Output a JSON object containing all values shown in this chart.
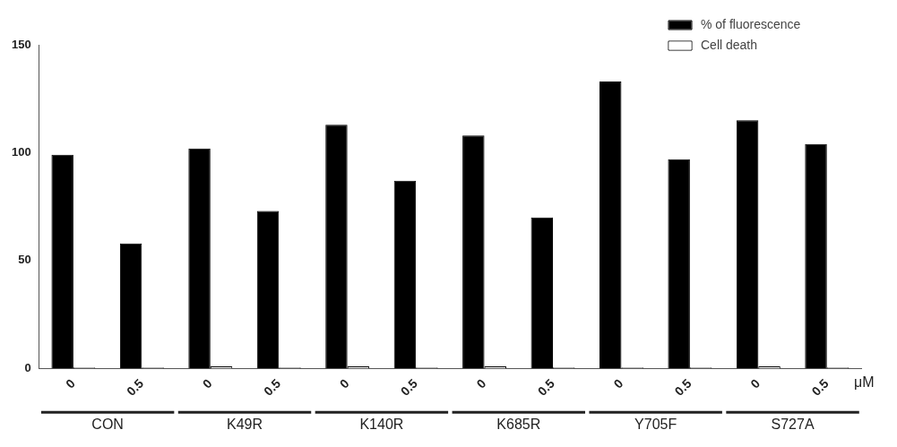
{
  "chart_data": {
    "type": "bar",
    "categories": [
      "0",
      "0.5",
      "0",
      "0.5",
      "0",
      "0.5",
      "0",
      "0.5",
      "0",
      "0.5",
      "0",
      "0.5"
    ],
    "series": [
      {
        "name": "% of fluorescence",
        "color": "#000000",
        "values": [
          99,
          58,
          102,
          73,
          113,
          87,
          108,
          70,
          133,
          97,
          115,
          104
        ]
      },
      {
        "name": "Cell death",
        "color": "#ffffff",
        "values": [
          0.5,
          0.5,
          1,
          0.5,
          1,
          0.5,
          1,
          0.5,
          0.5,
          0.5,
          1,
          0.5
        ]
      }
    ],
    "ylim": [
      0,
      150
    ],
    "yticks": [
      0,
      50,
      100,
      150
    ],
    "grid": false,
    "legend": "top right",
    "annotations": [
      "CON",
      "K49R",
      "K140R",
      "K685R",
      "Y705F",
      "S727A",
      "μM"
    ]
  }
}
